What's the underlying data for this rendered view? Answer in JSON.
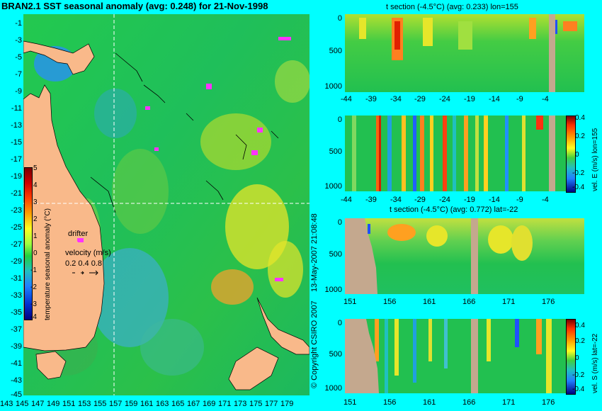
{
  "map": {
    "title": "BRAN2.1 SST seasonal anomaly (avg: 0.248) for 21-Nov-1998",
    "lat_ticks": [
      "-1",
      "-3",
      "-5",
      "-7",
      "-9",
      "-11",
      "-13",
      "-15",
      "-17",
      "-19",
      "-21",
      "-23",
      "-25",
      "-27",
      "-29",
      "-31",
      "-33",
      "-35",
      "-37",
      "-39",
      "-41",
      "-43",
      "-45"
    ],
    "lon_ticks": [
      "143",
      "145",
      "147",
      "149",
      "151",
      "153",
      "155",
      "157",
      "159",
      "161",
      "163",
      "165",
      "167",
      "169",
      "171",
      "173",
      "175",
      "177",
      "179"
    ],
    "colorbar": {
      "ticks": [
        "5",
        "4",
        "3",
        "2",
        "1",
        "0",
        "-1",
        "-2",
        "-3",
        "-4"
      ],
      "label": "temperature seasonal anomaly (°C)"
    },
    "drifter_label": "drifter",
    "velocity_label": "velocity (m/s)",
    "velocity_values": "0.2 0.4 0.8"
  },
  "panels": {
    "p1": {
      "title": "t section (-4.5°C) (avg: 0.233) lon=155",
      "y_ticks": [
        "0",
        "500",
        "1000"
      ],
      "x_ticks": [
        "-44",
        "-39",
        "-34",
        "-29",
        "-24",
        "-19",
        "-14",
        "-9",
        "-4"
      ]
    },
    "p2": {
      "y_ticks": [
        "0",
        "500",
        "1000"
      ],
      "x_ticks": [
        "-44",
        "-39",
        "-34",
        "-29",
        "-24",
        "-19",
        "-14",
        "-9",
        "-4"
      ],
      "colorbar_label": "vel. E (m/s) lon=155",
      "cb_ticks": [
        "0.4",
        "0.2",
        "0",
        "-0.2",
        "-0.4"
      ]
    },
    "p3": {
      "title": "t section (-4.5°C) (avg: 0.772) lat=-22",
      "y_ticks": [
        "0",
        "500",
        "1000"
      ],
      "x_ticks": [
        "151",
        "156",
        "161",
        "166",
        "171",
        "176"
      ]
    },
    "p4": {
      "y_ticks": [
        "0",
        "500",
        "1000"
      ],
      "x_ticks": [
        "151",
        "156",
        "161",
        "166",
        "171",
        "176"
      ],
      "colorbar_label": "vel. S (m/s) lat=-22",
      "cb_ticks": [
        "0.4",
        "0.2",
        "0",
        "-0.2",
        "-0.4"
      ]
    }
  },
  "copyright": "© Copyright CSIRO 2007",
  "timestamp": "13-May-2007 21:08:48",
  "colors": {
    "background": "#00ffff",
    "land": "#f9b98a",
    "ocean_base": "#22c055",
    "section_land": "#c4a88e"
  }
}
